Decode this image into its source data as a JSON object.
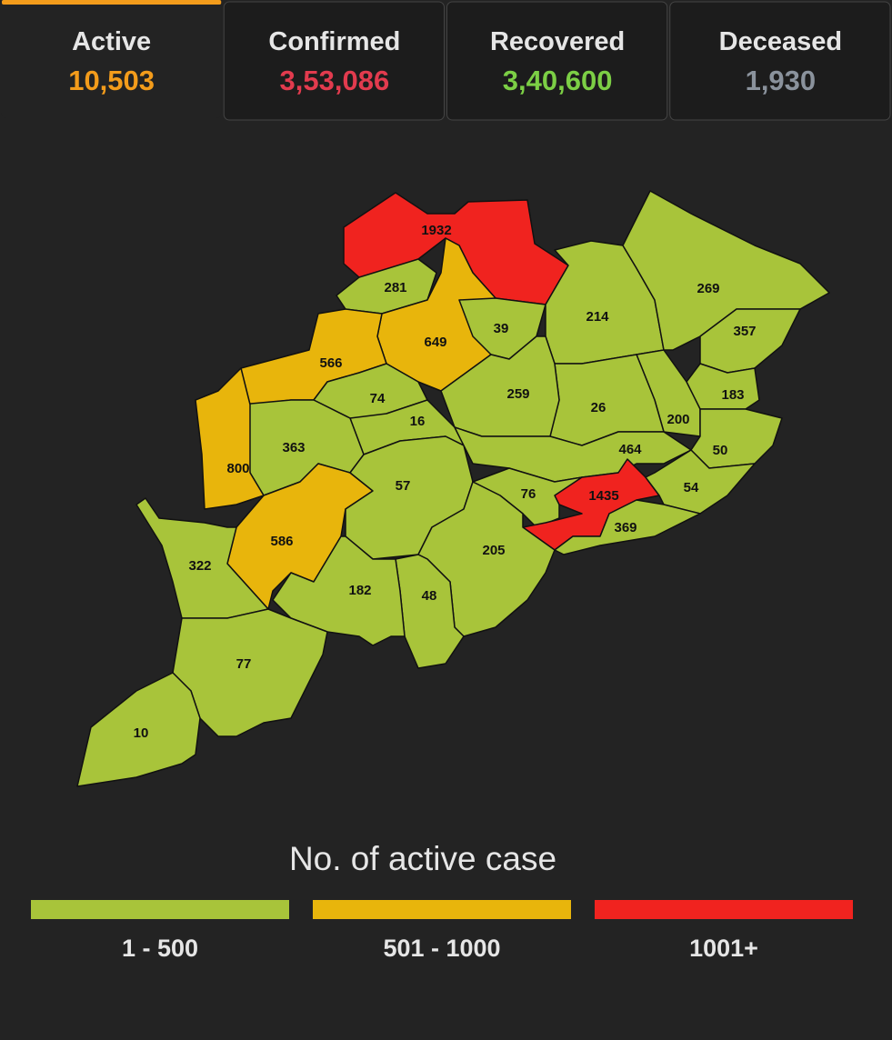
{
  "tabs": [
    {
      "label": "Active",
      "value": "10,503",
      "color": "#f39c1b"
    },
    {
      "label": "Confirmed",
      "value": "3,53,086",
      "color": "#e23b4e"
    },
    {
      "label": "Recovered",
      "value": "3,40,600",
      "color": "#7ccf45"
    },
    {
      "label": "Deceased",
      "value": "1,930",
      "color": "#8a929c"
    }
  ],
  "map": {
    "regions": [
      {
        "value": 1932,
        "color": "#f0231f"
      },
      {
        "value": 281,
        "color": "#a8c43a"
      },
      {
        "value": 649,
        "color": "#e8b50c"
      },
      {
        "value": 566,
        "color": "#e8b50c"
      },
      {
        "value": 39,
        "color": "#a8c43a"
      },
      {
        "value": 214,
        "color": "#a8c43a"
      },
      {
        "value": 269,
        "color": "#a8c43a"
      },
      {
        "value": 357,
        "color": "#a8c43a"
      },
      {
        "value": 183,
        "color": "#a8c43a"
      },
      {
        "value": 200,
        "color": "#a8c43a"
      },
      {
        "value": 50,
        "color": "#a8c43a"
      },
      {
        "value": 26,
        "color": "#a8c43a"
      },
      {
        "value": 259,
        "color": "#a8c43a"
      },
      {
        "value": 74,
        "color": "#a8c43a"
      },
      {
        "value": 16,
        "color": "#a8c43a"
      },
      {
        "value": 363,
        "color": "#a8c43a"
      },
      {
        "value": 800,
        "color": "#e8b50c"
      },
      {
        "value": 586,
        "color": "#e8b50c"
      },
      {
        "value": 57,
        "color": "#a8c43a"
      },
      {
        "value": 464,
        "color": "#a8c43a"
      },
      {
        "value": 76,
        "color": "#a8c43a"
      },
      {
        "value": 1435,
        "color": "#f0231f"
      },
      {
        "value": 54,
        "color": "#a8c43a"
      },
      {
        "value": 369,
        "color": "#a8c43a"
      },
      {
        "value": 205,
        "color": "#a8c43a"
      },
      {
        "value": 48,
        "color": "#a8c43a"
      },
      {
        "value": 182,
        "color": "#a8c43a"
      },
      {
        "value": 322,
        "color": "#a8c43a"
      },
      {
        "value": 77,
        "color": "#a8c43a"
      },
      {
        "value": 10,
        "color": "#a8c43a"
      }
    ]
  },
  "legend": {
    "title": "No. of active case",
    "items": [
      {
        "label": "1 - 500",
        "color": "#a8c43a"
      },
      {
        "label": "501 - 1000",
        "color": "#e8b50c"
      },
      {
        "label": "1001+",
        "color": "#f0231f"
      }
    ]
  }
}
